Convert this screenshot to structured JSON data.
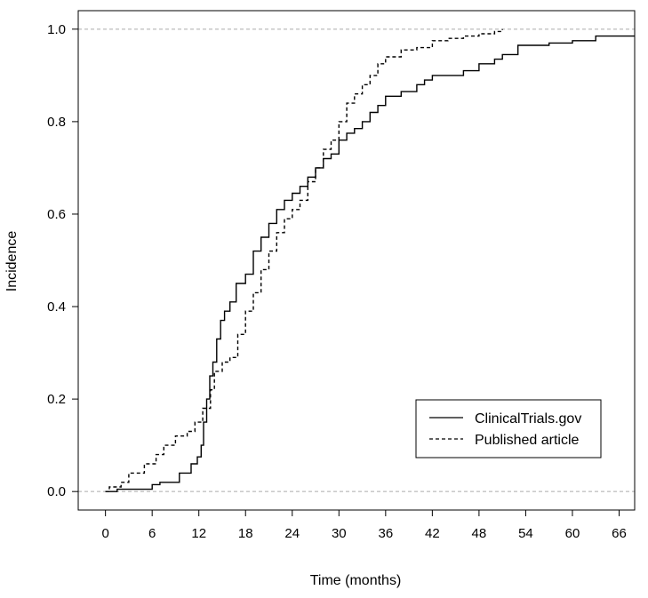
{
  "chart_data": {
    "type": "line",
    "title": "",
    "xlabel": "Time (months)",
    "ylabel": "Incidence",
    "xlim": [
      -3.5,
      68
    ],
    "ylim": [
      -0.04,
      1.04
    ],
    "xticks": [
      0,
      6,
      12,
      18,
      24,
      30,
      36,
      42,
      48,
      54,
      60,
      66
    ],
    "yticks": [
      0.0,
      0.2,
      0.4,
      0.6,
      0.8,
      1.0
    ],
    "ytick_labels": [
      "0.0",
      "0.2",
      "0.4",
      "0.6",
      "0.8",
      "1.0"
    ],
    "reference_lines": [
      0.0,
      1.0
    ],
    "grid": false,
    "legend_position": "bottom-right",
    "series": [
      {
        "name": "ClinicalTrials.gov",
        "style": "solid",
        "step": true,
        "points": [
          [
            0,
            0.0
          ],
          [
            1.5,
            0.005
          ],
          [
            6,
            0.015
          ],
          [
            7,
            0.02
          ],
          [
            9.5,
            0.04
          ],
          [
            11,
            0.06
          ],
          [
            11.8,
            0.075
          ],
          [
            12.3,
            0.1
          ],
          [
            12.6,
            0.15
          ],
          [
            13,
            0.2
          ],
          [
            13.4,
            0.25
          ],
          [
            13.8,
            0.28
          ],
          [
            14.3,
            0.33
          ],
          [
            14.8,
            0.37
          ],
          [
            15.3,
            0.39
          ],
          [
            16,
            0.41
          ],
          [
            16.8,
            0.45
          ],
          [
            18,
            0.47
          ],
          [
            19,
            0.52
          ],
          [
            20,
            0.55
          ],
          [
            21,
            0.58
          ],
          [
            22,
            0.61
          ],
          [
            23,
            0.63
          ],
          [
            24,
            0.645
          ],
          [
            25,
            0.66
          ],
          [
            26,
            0.68
          ],
          [
            27,
            0.7
          ],
          [
            28,
            0.72
          ],
          [
            29,
            0.73
          ],
          [
            30,
            0.76
          ],
          [
            31,
            0.775
          ],
          [
            32,
            0.785
          ],
          [
            33,
            0.8
          ],
          [
            34,
            0.82
          ],
          [
            35,
            0.835
          ],
          [
            36,
            0.855
          ],
          [
            38,
            0.865
          ],
          [
            40,
            0.88
          ],
          [
            41,
            0.89
          ],
          [
            42,
            0.9
          ],
          [
            46,
            0.91
          ],
          [
            48,
            0.925
          ],
          [
            50,
            0.935
          ],
          [
            51,
            0.945
          ],
          [
            53,
            0.965
          ],
          [
            57,
            0.97
          ],
          [
            60,
            0.975
          ],
          [
            63,
            0.985
          ],
          [
            68,
            0.985
          ]
        ]
      },
      {
        "name": "Published article",
        "style": "dashed",
        "step": true,
        "points": [
          [
            0,
            0.0
          ],
          [
            0.5,
            0.01
          ],
          [
            2,
            0.02
          ],
          [
            3,
            0.04
          ],
          [
            5,
            0.06
          ],
          [
            6.5,
            0.08
          ],
          [
            7.5,
            0.1
          ],
          [
            9,
            0.12
          ],
          [
            10.5,
            0.13
          ],
          [
            11.5,
            0.15
          ],
          [
            12.5,
            0.18
          ],
          [
            13.5,
            0.22
          ],
          [
            14,
            0.26
          ],
          [
            15,
            0.28
          ],
          [
            16,
            0.29
          ],
          [
            17,
            0.34
          ],
          [
            18,
            0.39
          ],
          [
            19,
            0.43
          ],
          [
            20,
            0.48
          ],
          [
            21,
            0.52
          ],
          [
            22,
            0.56
          ],
          [
            23,
            0.59
          ],
          [
            24,
            0.61
          ],
          [
            25,
            0.63
          ],
          [
            26,
            0.67
          ],
          [
            27,
            0.7
          ],
          [
            28,
            0.74
          ],
          [
            29,
            0.76
          ],
          [
            30,
            0.8
          ],
          [
            31,
            0.84
          ],
          [
            32,
            0.86
          ],
          [
            33,
            0.88
          ],
          [
            34,
            0.9
          ],
          [
            35,
            0.925
          ],
          [
            36,
            0.94
          ],
          [
            38,
            0.955
          ],
          [
            40,
            0.96
          ],
          [
            42,
            0.975
          ],
          [
            44,
            0.98
          ],
          [
            46,
            0.985
          ],
          [
            48,
            0.99
          ],
          [
            50,
            0.995
          ],
          [
            51,
            1.0
          ]
        ]
      }
    ]
  }
}
